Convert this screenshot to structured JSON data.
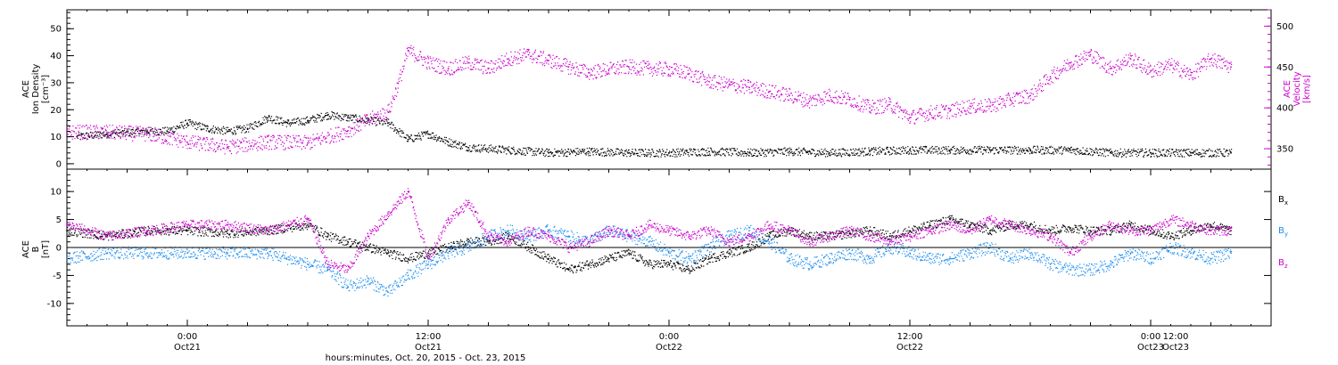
{
  "chart_data": [
    {
      "type": "scatter",
      "panel": "top",
      "ylabel_left": [
        "ACE",
        "Ion Density",
        "[cm⁻³]"
      ],
      "ylabel_right": [
        "ACE",
        "Velocity",
        "[km/s]"
      ],
      "xlim_hours": [
        -6,
        54
      ],
      "ylim_left": [
        -2,
        57
      ],
      "ylim_right": [
        325,
        520
      ],
      "yticks_left": [
        "0",
        "10",
        "20",
        "30",
        "40",
        "50"
      ],
      "yticks_right": [
        "350",
        "400",
        "450",
        "500"
      ],
      "series": [
        {
          "axis": "left",
          "color": "#000000",
          "points": [
            [
              -5.5,
              10
            ],
            [
              -4,
              11
            ],
            [
              -2,
              12
            ],
            [
              -1,
              12
            ],
            [
              0,
              15
            ],
            [
              1,
              13
            ],
            [
              2,
              12
            ],
            [
              3,
              13
            ],
            [
              4,
              17
            ],
            [
              5,
              15
            ],
            [
              6,
              16
            ],
            [
              7,
              18
            ],
            [
              8,
              17
            ],
            [
              9,
              16
            ],
            [
              10,
              15
            ],
            [
              11,
              9
            ],
            [
              12,
              11
            ],
            [
              13,
              8
            ],
            [
              14,
              6
            ],
            [
              16,
              5
            ],
            [
              18,
              4
            ],
            [
              20,
              4.5
            ],
            [
              22,
              4
            ],
            [
              24,
              4
            ],
            [
              26,
              4.5
            ],
            [
              28,
              4
            ],
            [
              30,
              4.5
            ],
            [
              32,
              4
            ],
            [
              34,
              4.5
            ],
            [
              36,
              5
            ],
            [
              38,
              5
            ],
            [
              40,
              5
            ],
            [
              42,
              5
            ],
            [
              44,
              5
            ],
            [
              46,
              4
            ],
            [
              48,
              4
            ],
            [
              50,
              4
            ],
            [
              52,
              4
            ]
          ]
        },
        {
          "axis": "right",
          "color": "#cc00cc",
          "points": [
            [
              -6,
              370
            ],
            [
              -4,
              370
            ],
            [
              -2,
              368
            ],
            [
              0,
              358
            ],
            [
              2,
              352
            ],
            [
              4,
              358
            ],
            [
              6,
              357
            ],
            [
              8,
              372
            ],
            [
              9,
              385
            ],
            [
              10,
              395
            ],
            [
              10.5,
              430
            ],
            [
              11,
              470
            ],
            [
              12,
              455
            ],
            [
              13,
              448
            ],
            [
              14,
              455
            ],
            [
              15,
              448
            ],
            [
              16,
              460
            ],
            [
              17,
              465
            ],
            [
              18,
              458
            ],
            [
              19,
              450
            ],
            [
              20,
              443
            ],
            [
              21,
              447
            ],
            [
              22,
              450
            ],
            [
              23,
              448
            ],
            [
              24,
              447
            ],
            [
              25,
              442
            ],
            [
              26,
              432
            ],
            [
              27,
              428
            ],
            [
              28,
              425
            ],
            [
              29,
              420
            ],
            [
              30,
              415
            ],
            [
              31,
              408
            ],
            [
              32,
              415
            ],
            [
              33,
              410
            ],
            [
              34,
              400
            ],
            [
              35,
              404
            ],
            [
              36,
              388
            ],
            [
              37,
              394
            ],
            [
              38,
              396
            ],
            [
              39,
              402
            ],
            [
              40,
              402
            ],
            [
              41,
              410
            ],
            [
              42,
              415
            ],
            [
              43,
              438
            ],
            [
              44,
              455
            ],
            [
              45,
              465
            ],
            [
              46,
              448
            ],
            [
              47,
              460
            ],
            [
              48,
              445
            ],
            [
              49,
              452
            ],
            [
              50,
              440
            ],
            [
              51,
              460
            ],
            [
              52,
              450
            ]
          ]
        }
      ]
    },
    {
      "type": "scatter",
      "panel": "bottom",
      "ylabel_left": [
        "ACE",
        "B",
        "[nT]"
      ],
      "xlim_hours": [
        -6,
        54
      ],
      "ylim": [
        -14,
        14
      ],
      "yticks": [
        "10",
        "5",
        "0",
        "-5",
        "-10"
      ],
      "zero_line": true,
      "xtick_labels": [
        {
          "hours": 0,
          "time": "0:00",
          "day": "Oct21"
        },
        {
          "hours": 12,
          "time": "12:00",
          "day": "Oct21"
        },
        {
          "hours": 24,
          "time": "0:00",
          "day": "Oct22"
        },
        {
          "hours": 36,
          "time": "12:00",
          "day": "Oct22"
        },
        {
          "hours": 48,
          "time": "0:00",
          "day": "Oct23"
        },
        {
          "hours": 60,
          "time": "12:00",
          "day": "Oct23"
        }
      ],
      "xlabel": "hours:minutes, Oct. 20, 2015 - Oct. 23, 2015",
      "series": [
        {
          "name": "Bx",
          "label_main": "B",
          "label_sub": "x",
          "color": "#000000",
          "points": [
            [
              -6,
              3
            ],
            [
              -4,
              2
            ],
            [
              -2,
              3
            ],
            [
              0,
              3
            ],
            [
              2,
              2.5
            ],
            [
              4,
              3
            ],
            [
              6,
              4
            ],
            [
              7,
              2
            ],
            [
              8,
              1
            ],
            [
              9,
              0
            ],
            [
              10,
              -1
            ],
            [
              11,
              -2
            ],
            [
              12,
              -1
            ],
            [
              13,
              0
            ],
            [
              14,
              1
            ],
            [
              15,
              1
            ],
            [
              16,
              2
            ],
            [
              17,
              0
            ],
            [
              18,
              -2
            ],
            [
              19,
              -4
            ],
            [
              20,
              -3
            ],
            [
              21,
              -2
            ],
            [
              22,
              -1
            ],
            [
              23,
              -3
            ],
            [
              24,
              -3
            ],
            [
              25,
              -4
            ],
            [
              26,
              -2
            ],
            [
              27,
              -1
            ],
            [
              28,
              0
            ],
            [
              29,
              2
            ],
            [
              30,
              3
            ],
            [
              31,
              2
            ],
            [
              32,
              2
            ],
            [
              33,
              2.5
            ],
            [
              34,
              3
            ],
            [
              35,
              2
            ],
            [
              36,
              3
            ],
            [
              37,
              4
            ],
            [
              38,
              5
            ],
            [
              39,
              4
            ],
            [
              40,
              3
            ],
            [
              41,
              4
            ],
            [
              42,
              4
            ],
            [
              43,
              3
            ],
            [
              44,
              3.5
            ],
            [
              45,
              3
            ],
            [
              46,
              3
            ],
            [
              47,
              4
            ],
            [
              48,
              3
            ],
            [
              49,
              2
            ],
            [
              50,
              3
            ],
            [
              51,
              4
            ],
            [
              52,
              3
            ]
          ]
        },
        {
          "name": "By",
          "label_main": "B",
          "label_sub": "y",
          "color": "#1f8ff0",
          "points": [
            [
              -6,
              -2
            ],
            [
              -4,
              -1
            ],
            [
              -2,
              -1
            ],
            [
              0,
              -1
            ],
            [
              2,
              -1
            ],
            [
              4,
              -1
            ],
            [
              6,
              -3
            ],
            [
              7,
              -4
            ],
            [
              8,
              -7
            ],
            [
              9,
              -6
            ],
            [
              10,
              -8
            ],
            [
              11,
              -5
            ],
            [
              12,
              -3
            ],
            [
              13,
              -1
            ],
            [
              14,
              0
            ],
            [
              15,
              2
            ],
            [
              16,
              3
            ],
            [
              17,
              2
            ],
            [
              18,
              3
            ],
            [
              19,
              2
            ],
            [
              20,
              1
            ],
            [
              21,
              3
            ],
            [
              22,
              2
            ],
            [
              23,
              1
            ],
            [
              24,
              -1
            ],
            [
              25,
              -2
            ],
            [
              26,
              0
            ],
            [
              27,
              2
            ],
            [
              28,
              3
            ],
            [
              29,
              1
            ],
            [
              30,
              -2
            ],
            [
              31,
              -3
            ],
            [
              32,
              -2
            ],
            [
              33,
              -1
            ],
            [
              34,
              -2
            ],
            [
              35,
              0
            ],
            [
              36,
              -1
            ],
            [
              37,
              -2
            ],
            [
              38,
              -2
            ],
            [
              39,
              -1
            ],
            [
              40,
              0
            ],
            [
              41,
              -2
            ],
            [
              42,
              -1
            ],
            [
              43,
              -3
            ],
            [
              44,
              -4
            ],
            [
              45,
              -4
            ],
            [
              46,
              -3
            ],
            [
              47,
              -1
            ],
            [
              48,
              -2
            ],
            [
              49,
              0
            ],
            [
              50,
              -1
            ],
            [
              51,
              -2
            ],
            [
              52,
              -1
            ]
          ]
        },
        {
          "name": "Bz",
          "label_main": "B",
          "label_sub": "z",
          "color": "#cc00cc",
          "points": [
            [
              -6,
              4
            ],
            [
              -4,
              2
            ],
            [
              -2,
              3
            ],
            [
              0,
              4
            ],
            [
              2,
              4
            ],
            [
              4,
              3
            ],
            [
              6,
              5
            ],
            [
              7,
              -3
            ],
            [
              8,
              -4
            ],
            [
              9,
              2
            ],
            [
              10,
              6
            ],
            [
              11,
              10
            ],
            [
              12,
              -2
            ],
            [
              13,
              5
            ],
            [
              14,
              8
            ],
            [
              15,
              2
            ],
            [
              16,
              1
            ],
            [
              17,
              3
            ],
            [
              18,
              2
            ],
            [
              19,
              0
            ],
            [
              20,
              1
            ],
            [
              21,
              3
            ],
            [
              22,
              2
            ],
            [
              23,
              4
            ],
            [
              24,
              3
            ],
            [
              25,
              2
            ],
            [
              26,
              3
            ],
            [
              27,
              1
            ],
            [
              28,
              2
            ],
            [
              29,
              4
            ],
            [
              30,
              3
            ],
            [
              31,
              1
            ],
            [
              32,
              2
            ],
            [
              33,
              3
            ],
            [
              34,
              2
            ],
            [
              35,
              1
            ],
            [
              36,
              2
            ],
            [
              37,
              3
            ],
            [
              38,
              4
            ],
            [
              39,
              3
            ],
            [
              40,
              5
            ],
            [
              41,
              4
            ],
            [
              42,
              3
            ],
            [
              43,
              2
            ],
            [
              44,
              -1
            ],
            [
              45,
              2
            ],
            [
              46,
              4
            ],
            [
              47,
              3
            ],
            [
              48,
              3
            ],
            [
              49,
              5
            ],
            [
              50,
              4
            ],
            [
              51,
              3
            ],
            [
              52,
              3
            ]
          ]
        }
      ]
    }
  ]
}
